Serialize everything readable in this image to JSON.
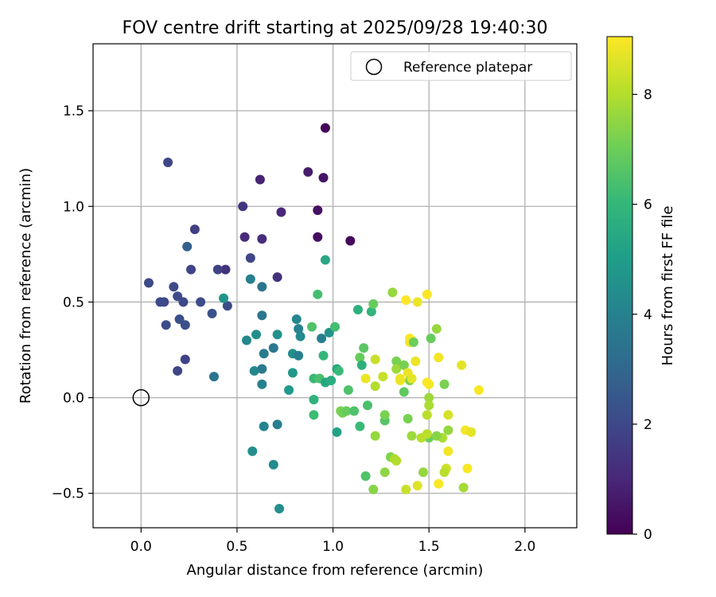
{
  "chart_data": {
    "type": "scatter",
    "title": "FOV centre drift starting at 2025/09/28 19:40:30",
    "xlabel": "Angular distance from reference (arcmin)",
    "ylabel": "Rotation from reference (arcmin)",
    "xlim": [
      -0.25,
      2.27
    ],
    "ylim": [
      -0.68,
      1.85
    ],
    "xticks": [
      0.0,
      0.5,
      1.0,
      1.5,
      2.0
    ],
    "xtick_labels": [
      "0.0",
      "0.5",
      "1.0",
      "1.5",
      "2.0"
    ],
    "yticks": [
      -0.5,
      0.0,
      0.5,
      1.0,
      1.5
    ],
    "ytick_labels": [
      "−0.5",
      "0.0",
      "0.5",
      "1.0",
      "1.5"
    ],
    "grid": true,
    "legend": {
      "position": "top-right",
      "entries": [
        {
          "label": "Reference platepar",
          "marker": "open-circle"
        }
      ]
    },
    "reference_point": {
      "x": 0.0,
      "y": 0.0
    },
    "colorbar": {
      "label": "Hours from first FF file",
      "colormap": "viridis",
      "range": [
        0,
        9.05
      ],
      "ticks": [
        0,
        2,
        4,
        6,
        8
      ],
      "tick_labels": [
        "0",
        "2",
        "4",
        "6",
        "8"
      ],
      "stops": [
        "#440154",
        "#482878",
        "#3e4989",
        "#31688e",
        "#26828e",
        "#1f9e89",
        "#35b779",
        "#6ece58",
        "#b5de2b",
        "#fde725"
      ]
    },
    "points": [
      [
        0.96,
        1.41,
        0.1
      ],
      [
        1.09,
        0.82,
        0.2
      ],
      [
        0.92,
        0.84,
        0.3
      ],
      [
        0.92,
        0.98,
        0.4
      ],
      [
        0.95,
        1.15,
        0.5
      ],
      [
        0.87,
        1.18,
        0.7
      ],
      [
        0.62,
        1.14,
        0.9
      ],
      [
        0.73,
        0.97,
        1.0
      ],
      [
        0.54,
        0.84,
        1.1
      ],
      [
        0.63,
        0.83,
        1.2
      ],
      [
        0.44,
        0.67,
        1.3
      ],
      [
        0.71,
        0.63,
        1.3
      ],
      [
        0.53,
        1.0,
        1.4
      ],
      [
        0.14,
        1.23,
        1.9
      ],
      [
        0.28,
        0.88,
        1.7
      ],
      [
        0.4,
        0.67,
        1.8
      ],
      [
        0.26,
        0.67,
        1.9
      ],
      [
        0.57,
        0.73,
        1.9
      ],
      [
        0.04,
        0.6,
        2.0
      ],
      [
        0.1,
        0.5,
        2.0
      ],
      [
        0.12,
        0.5,
        2.0
      ],
      [
        0.17,
        0.58,
        2.1
      ],
      [
        0.19,
        0.53,
        2.1
      ],
      [
        0.22,
        0.5,
        2.0
      ],
      [
        0.2,
        0.41,
        2.2
      ],
      [
        0.13,
        0.38,
        2.1
      ],
      [
        0.23,
        0.38,
        2.2
      ],
      [
        0.31,
        0.5,
        2.1
      ],
      [
        0.37,
        0.44,
        2.3
      ],
      [
        0.45,
        0.48,
        2.1
      ],
      [
        0.23,
        0.2,
        1.8
      ],
      [
        0.19,
        0.14,
        1.9
      ],
      [
        0.24,
        0.79,
        2.8
      ],
      [
        0.38,
        0.11,
        3.5
      ],
      [
        0.43,
        0.52,
        4.7
      ],
      [
        0.57,
        0.62,
        3.9
      ],
      [
        0.63,
        0.58,
        3.5
      ],
      [
        0.63,
        0.43,
        3.6
      ],
      [
        0.6,
        0.33,
        4.5
      ],
      [
        0.55,
        0.3,
        4.2
      ],
      [
        0.64,
        0.23,
        3.8
      ],
      [
        0.69,
        0.26,
        3.6
      ],
      [
        0.71,
        0.33,
        4.6
      ],
      [
        0.63,
        0.15,
        3.7
      ],
      [
        0.59,
        0.14,
        4.2
      ],
      [
        0.63,
        0.07,
        4.0
      ],
      [
        0.64,
        -0.15,
        4.1
      ],
      [
        0.71,
        -0.14,
        3.9
      ],
      [
        0.58,
        -0.28,
        4.5
      ],
      [
        0.69,
        -0.35,
        4.3
      ],
      [
        0.72,
        -0.58,
        4.5
      ],
      [
        0.81,
        0.41,
        4.2
      ],
      [
        0.82,
        0.36,
        4.0
      ],
      [
        0.83,
        0.32,
        4.3
      ],
      [
        0.79,
        0.23,
        4.4
      ],
      [
        0.82,
        0.22,
        3.9
      ],
      [
        0.79,
        0.13,
        4.8
      ],
      [
        0.77,
        0.04,
        4.9
      ],
      [
        0.94,
        0.31,
        3.9
      ],
      [
        0.98,
        0.34,
        4.6
      ],
      [
        0.96,
        0.72,
        5.4
      ],
      [
        0.92,
        0.54,
        6.3
      ],
      [
        0.89,
        0.37,
        6.5
      ],
      [
        0.95,
        0.22,
        6.0
      ],
      [
        0.9,
        0.1,
        6.1
      ],
      [
        0.93,
        0.1,
        6.4
      ],
      [
        0.96,
        0.08,
        5.4
      ],
      [
        0.99,
        0.09,
        5.6
      ],
      [
        1.02,
        0.15,
        5.4
      ],
      [
        1.03,
        0.14,
        6.1
      ],
      [
        1.01,
        0.37,
        6.3
      ],
      [
        0.9,
        -0.01,
        5.8
      ],
      [
        0.9,
        -0.09,
        6.2
      ],
      [
        1.02,
        -0.18,
        5.2
      ],
      [
        1.13,
        0.46,
        5.7
      ],
      [
        1.2,
        0.45,
        5.9
      ],
      [
        1.21,
        0.49,
        6.9
      ],
      [
        1.16,
        0.26,
        6.7
      ],
      [
        1.14,
        0.21,
        6.9
      ],
      [
        1.15,
        0.17,
        5.7
      ],
      [
        1.08,
        0.04,
        6.5
      ],
      [
        1.04,
        -0.07,
        7.2
      ],
      [
        1.05,
        -0.08,
        7.1
      ],
      [
        1.07,
        -0.07,
        6.9
      ],
      [
        1.11,
        -0.07,
        6.5
      ],
      [
        1.14,
        -0.15,
        6.1
      ],
      [
        1.18,
        -0.04,
        6.4
      ],
      [
        1.17,
        -0.41,
        6.5
      ],
      [
        1.21,
        -0.48,
        7.4
      ],
      [
        1.22,
        -0.2,
        7.6
      ],
      [
        1.27,
        -0.12,
        6.6
      ],
      [
        1.27,
        -0.09,
        7.2
      ],
      [
        1.27,
        -0.39,
        7.5
      ],
      [
        1.3,
        -0.31,
        7.3
      ],
      [
        1.32,
        -0.32,
        7.9
      ],
      [
        1.33,
        -0.33,
        8.0
      ],
      [
        1.31,
        0.55,
        7.6
      ],
      [
        1.33,
        0.19,
        7.2
      ],
      [
        1.33,
        0.15,
        7.7
      ],
      [
        1.38,
        0.51,
        9.0
      ],
      [
        1.44,
        0.5,
        8.8
      ],
      [
        1.49,
        0.54,
        9.0
      ],
      [
        1.51,
        0.31,
        6.9
      ],
      [
        1.54,
        0.36,
        7.6
      ],
      [
        1.4,
        0.31,
        9.0
      ],
      [
        1.41,
        0.3,
        9.1
      ],
      [
        1.4,
        0.29,
        8.9
      ],
      [
        1.42,
        0.29,
        7.0
      ],
      [
        1.43,
        0.19,
        8.8
      ],
      [
        1.37,
        0.17,
        7.2
      ],
      [
        1.39,
        0.13,
        8.8
      ],
      [
        1.4,
        0.09,
        7.3
      ],
      [
        1.41,
        0.1,
        8.7
      ],
      [
        1.35,
        0.09,
        8.9
      ],
      [
        1.37,
        0.03,
        6.8
      ],
      [
        1.22,
        0.2,
        8.3
      ],
      [
        1.22,
        0.06,
        8.0
      ],
      [
        1.17,
        0.1,
        8.8
      ],
      [
        1.26,
        0.11,
        8.3
      ],
      [
        1.55,
        0.21,
        8.9
      ],
      [
        1.5,
        0.07,
        8.9
      ],
      [
        1.58,
        0.07,
        7.2
      ],
      [
        1.5,
        0.0,
        7.7
      ],
      [
        1.5,
        -0.04,
        7.9
      ],
      [
        1.49,
        -0.09,
        8.1
      ],
      [
        1.6,
        -0.09,
        8.5
      ],
      [
        1.57,
        -0.21,
        7.9
      ],
      [
        1.5,
        -0.21,
        7.0
      ],
      [
        1.54,
        -0.2,
        7.4
      ],
      [
        1.46,
        -0.21,
        8.1
      ],
      [
        1.41,
        -0.2,
        7.7
      ],
      [
        1.39,
        -0.11,
        7.2
      ],
      [
        1.47,
        -0.39,
        7.6
      ],
      [
        1.49,
        -0.19,
        8.1
      ],
      [
        1.44,
        -0.46,
        8.6
      ],
      [
        1.38,
        -0.48,
        8.3
      ],
      [
        1.59,
        -0.37,
        8.4
      ],
      [
        1.58,
        -0.39,
        8.1
      ],
      [
        1.6,
        -0.28,
        8.9
      ],
      [
        1.55,
        -0.45,
        9.0
      ],
      [
        1.6,
        -0.17,
        7.6
      ],
      [
        1.67,
        0.17,
        8.7
      ],
      [
        1.68,
        -0.47,
        7.8
      ],
      [
        1.69,
        -0.17,
        8.9
      ],
      [
        1.72,
        -0.18,
        8.7
      ],
      [
        1.7,
        -0.37,
        9.0
      ],
      [
        1.76,
        0.04,
        9.0
      ],
      [
        1.49,
        0.08,
        9.0
      ],
      [
        1.35,
        0.1,
        8.8
      ]
    ]
  }
}
